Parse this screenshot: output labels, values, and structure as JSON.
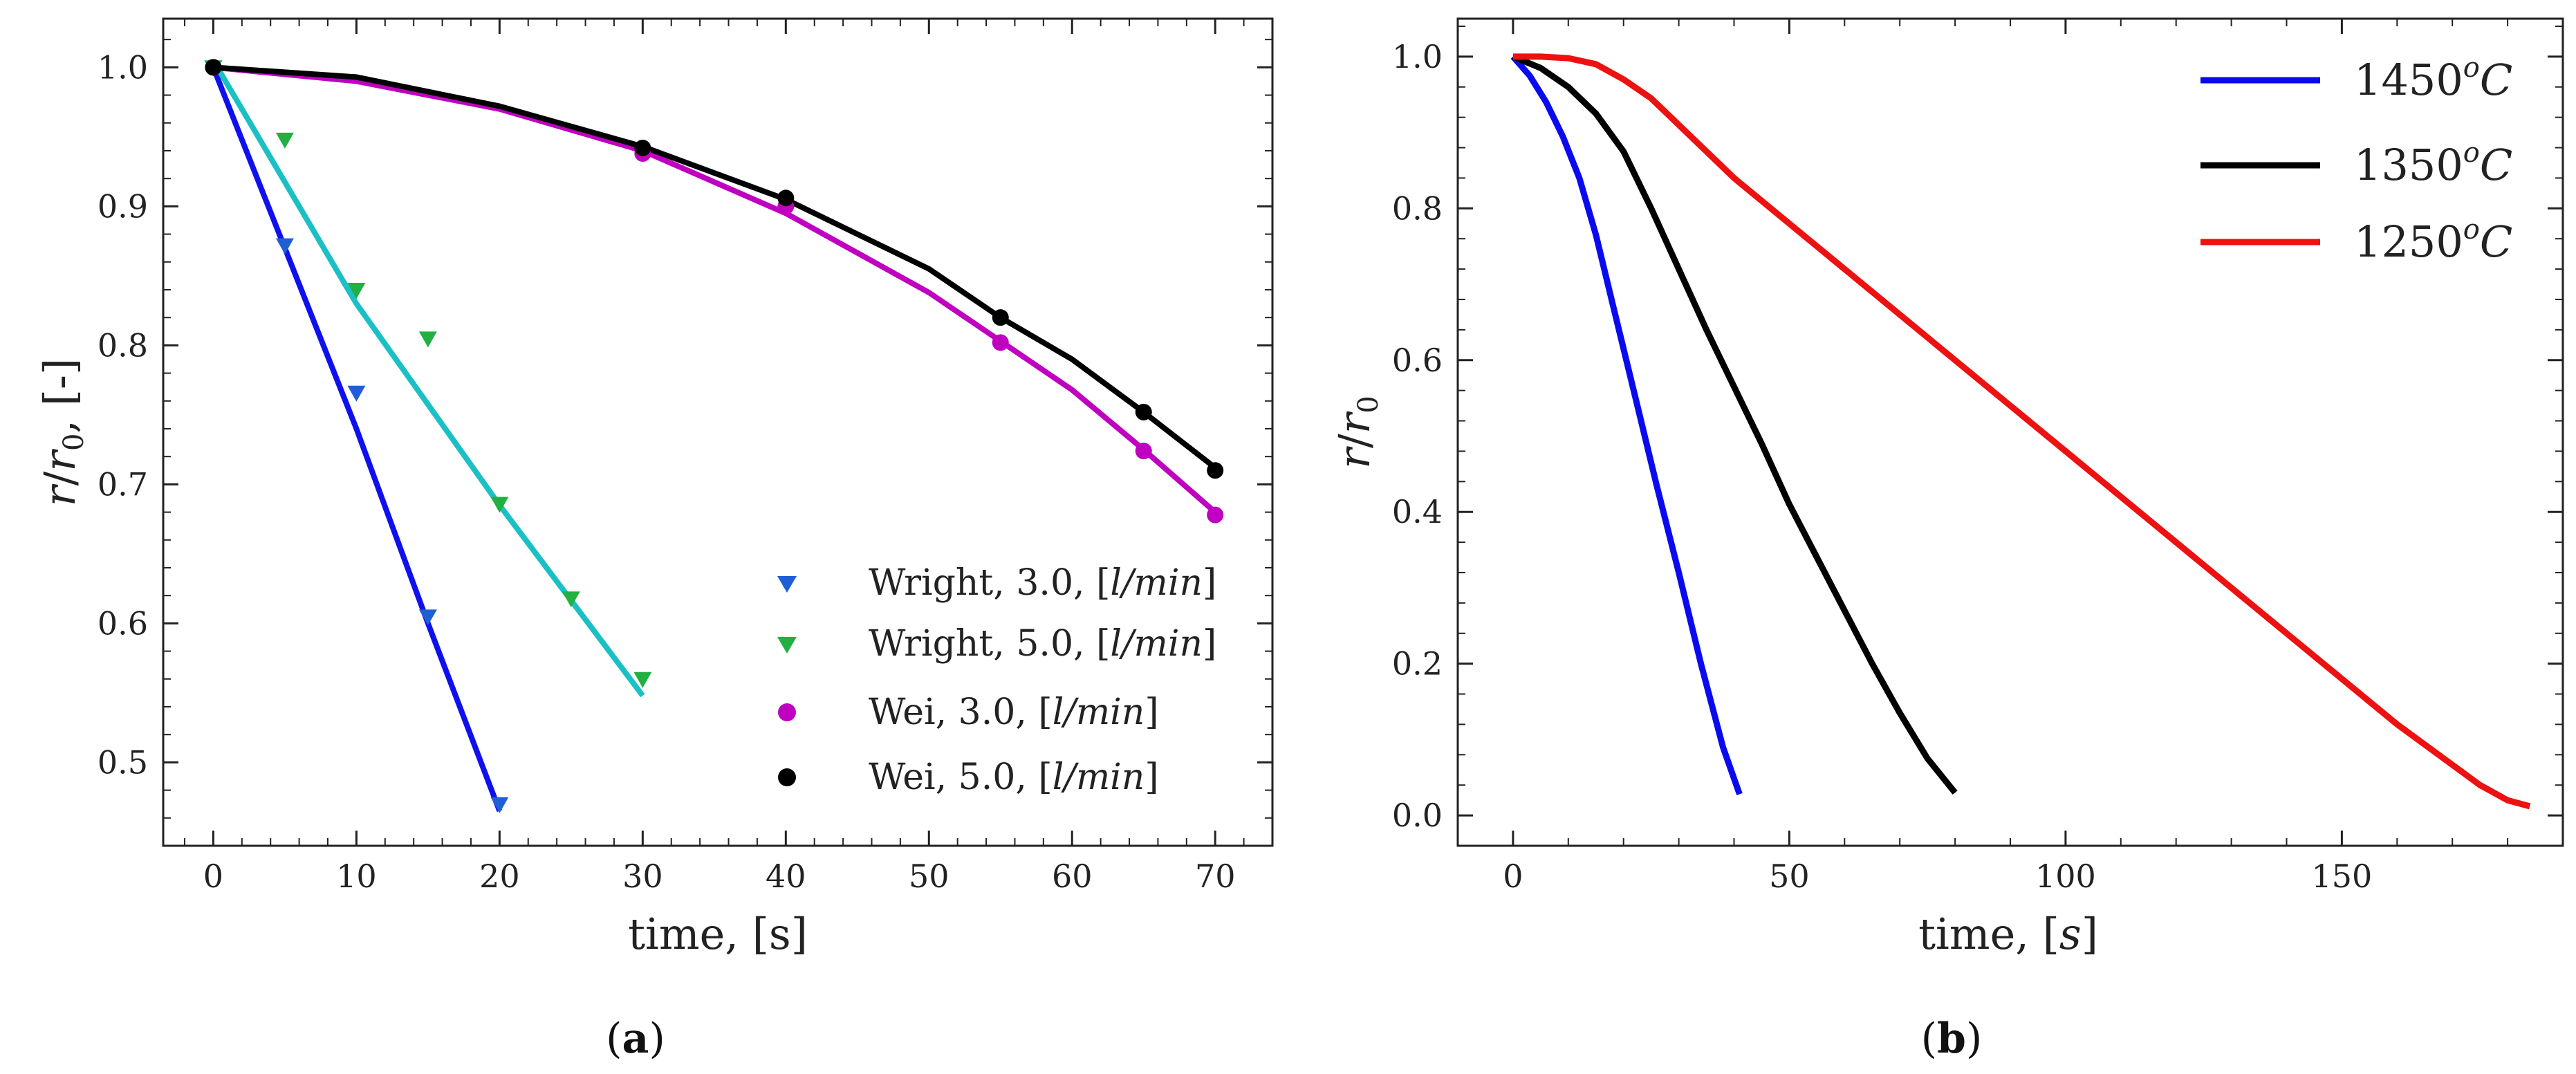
{
  "chart_data": [
    {
      "type": "line+scatter",
      "caption_open": "(",
      "caption_letter": "a",
      "caption_close": ")",
      "xlabel": "time, [s]",
      "ylabel": "r/r0, [-]",
      "ylabel_base": "r",
      "ylabel_sub": "0",
      "ylabel_tail": ", [-]",
      "xlim": [
        -3.5,
        74
      ],
      "ylim": [
        0.44,
        1.035
      ],
      "xticks": [
        0,
        10,
        20,
        30,
        40,
        50,
        60,
        70
      ],
      "xtick_labels": [
        "0",
        "10",
        "20",
        "30",
        "40",
        "50",
        "60",
        "70"
      ],
      "yticks": [
        0.5,
        0.6,
        0.7,
        0.8,
        0.9,
        1.0
      ],
      "ytick_labels": [
        "0.5",
        "0.6",
        "0.7",
        "0.8",
        "0.9",
        "1.0"
      ],
      "legend_position": "lower-right",
      "lines": [
        {
          "name": "Wright 3.0 fit",
          "color": "#1010ee",
          "x": [
            0,
            5,
            10,
            15,
            20
          ],
          "y": [
            1.0,
            0.87,
            0.74,
            0.6,
            0.465
          ]
        },
        {
          "name": "Wright 5.0 fit",
          "color": "#1ac0c6",
          "x": [
            0,
            10,
            20,
            30
          ],
          "y": [
            1.005,
            0.83,
            0.685,
            0.548
          ]
        },
        {
          "name": "Wei 3.0 fit",
          "color": "#c000c0",
          "x": [
            0,
            10,
            20,
            30,
            40,
            50,
            55,
            60,
            65,
            70
          ],
          "y": [
            1.0,
            0.99,
            0.97,
            0.94,
            0.895,
            0.838,
            0.803,
            0.768,
            0.725,
            0.68
          ]
        },
        {
          "name": "Wei 5.0 fit",
          "color": "#000000",
          "x": [
            0,
            10,
            20,
            30,
            40,
            50,
            55,
            60,
            65,
            70
          ],
          "y": [
            1.0,
            0.993,
            0.972,
            0.943,
            0.905,
            0.855,
            0.82,
            0.79,
            0.752,
            0.712
          ]
        }
      ],
      "series": [
        {
          "name": "Wright, 3.0, [l/min]",
          "label_prefix": "Wright, 3.0, [",
          "label_unit": "l/min",
          "label_suffix": "]",
          "marker": "triangle-down",
          "color": "#1f5fd6",
          "x": [
            0,
            5,
            10,
            15,
            20
          ],
          "y": [
            1.0,
            0.872,
            0.766,
            0.605,
            0.47
          ]
        },
        {
          "name": "Wright, 5.0, [l/min]",
          "label_prefix": "Wright, 5.0, [",
          "label_unit": "l/min",
          "label_suffix": "]",
          "marker": "triangle-down",
          "color": "#22b043",
          "x": [
            0,
            5,
            10,
            15,
            20,
            25,
            30
          ],
          "y": [
            1.0,
            0.948,
            0.84,
            0.805,
            0.686,
            0.618,
            0.56
          ]
        },
        {
          "name": "Wei, 3.0, [l/min]",
          "label_prefix": "Wei, 3.0, [",
          "label_unit": "l/min",
          "label_suffix": "]",
          "marker": "circle",
          "color": "#c000c0",
          "x": [
            0,
            30,
            40,
            55,
            65,
            70
          ],
          "y": [
            1.0,
            0.938,
            0.9,
            0.802,
            0.724,
            0.678
          ]
        },
        {
          "name": "Wei, 5.0, [l/min]",
          "label_prefix": "Wei, 5.0, [",
          "label_unit": "l/min",
          "label_suffix": "]",
          "marker": "circle",
          "color": "#000000",
          "x": [
            0,
            30,
            40,
            55,
            65,
            70
          ],
          "y": [
            1.0,
            0.942,
            0.906,
            0.82,
            0.752,
            0.71
          ]
        }
      ]
    },
    {
      "type": "line",
      "caption_open": "(",
      "caption_letter": "b",
      "caption_close": ")",
      "xlabel": "time, [s]",
      "xlabel_prefix": "time, [",
      "xlabel_unit": "s",
      "xlabel_suffix": "]",
      "ylabel": "r/r0",
      "ylabel_base": "r",
      "ylabel_sub": "0",
      "xlim": [
        -10,
        190
      ],
      "ylim": [
        -0.04,
        1.05
      ],
      "xticks": [
        0,
        50,
        100,
        150
      ],
      "xtick_labels": [
        "0",
        "50",
        "100",
        "150"
      ],
      "yticks": [
        0.0,
        0.2,
        0.4,
        0.6,
        0.8,
        1.0
      ],
      "ytick_labels": [
        "0.0",
        "0.2",
        "0.4",
        "0.6",
        "0.8",
        "1.0"
      ],
      "legend_position": "top-right",
      "series": [
        {
          "name": "1450oC",
          "label_num": "1450",
          "label_sup": "o",
          "label_unit": "C",
          "color": "#0a0af0",
          "x": [
            0,
            3,
            6,
            9,
            12,
            15,
            18,
            22,
            26,
            30,
            34,
            38,
            41
          ],
          "y": [
            1.0,
            0.975,
            0.94,
            0.895,
            0.84,
            0.765,
            0.675,
            0.555,
            0.435,
            0.32,
            0.2,
            0.09,
            0.028
          ]
        },
        {
          "name": "1350oC",
          "label_num": "1350",
          "label_sup": "o",
          "label_unit": "C",
          "color": "#000000",
          "x": [
            0,
            5,
            10,
            15,
            20,
            25,
            30,
            35,
            40,
            45,
            50,
            55,
            60,
            65,
            70,
            75,
            80
          ],
          "y": [
            1.0,
            0.985,
            0.96,
            0.925,
            0.875,
            0.8,
            0.72,
            0.64,
            0.565,
            0.49,
            0.41,
            0.34,
            0.27,
            0.2,
            0.135,
            0.075,
            0.03
          ]
        },
        {
          "name": "1250oC",
          "label_num": "1250",
          "label_sup": "o",
          "label_unit": "C",
          "color": "#ee1111",
          "x": [
            0,
            5,
            10,
            15,
            20,
            25,
            30,
            35,
            40,
            50,
            60,
            80,
            100,
            120,
            140,
            160,
            175,
            180,
            184
          ],
          "y": [
            1.0,
            1.0,
            0.998,
            0.99,
            0.97,
            0.945,
            0.91,
            0.875,
            0.84,
            0.78,
            0.72,
            0.6,
            0.48,
            0.36,
            0.24,
            0.12,
            0.04,
            0.02,
            0.012
          ]
        }
      ]
    }
  ]
}
